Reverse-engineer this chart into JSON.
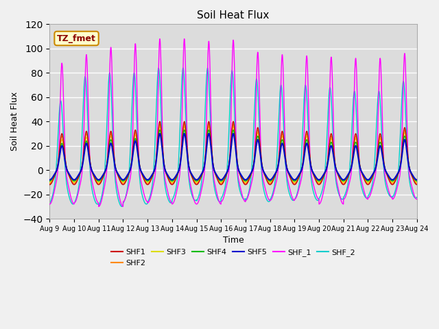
{
  "title": "Soil Heat Flux",
  "xlabel": "Time",
  "ylabel": "Soil Heat Flux",
  "ylim": [
    -40,
    120
  ],
  "yticks": [
    -40,
    -20,
    0,
    20,
    40,
    60,
    80,
    100,
    120
  ],
  "n_days": 15,
  "xtick_labels": [
    "Aug 9",
    "Aug 10",
    "Aug 11",
    "Aug 12",
    "Aug 13",
    "Aug 14",
    "Aug 15",
    "Aug 16",
    "Aug 17",
    "Aug 18",
    "Aug 19",
    "Aug 20",
    "Aug 21",
    "Aug 22",
    "Aug 23",
    "Aug 24"
  ],
  "series": {
    "SHF1": {
      "color": "#cc0000",
      "lw": 1.0
    },
    "SHF2": {
      "color": "#ff8800",
      "lw": 1.0
    },
    "SHF3": {
      "color": "#dddd00",
      "lw": 1.0
    },
    "SHF4": {
      "color": "#00bb00",
      "lw": 1.0
    },
    "SHF5": {
      "color": "#0000cc",
      "lw": 1.5
    },
    "SHF_1": {
      "color": "#ff00ff",
      "lw": 1.0
    },
    "SHF_2": {
      "color": "#00cccc",
      "lw": 1.0
    }
  },
  "plot_bg": "#dcdcdc",
  "fig_bg": "#f0f0f0",
  "grid_color": "#c8c8c8",
  "annotation_text": "TZ_fmet",
  "annotation_bg": "#ffffcc",
  "annotation_border": "#cc8800",
  "annotation_color": "#8B0000"
}
